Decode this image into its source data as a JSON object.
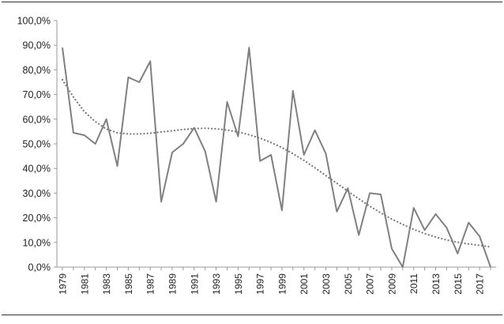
{
  "chart_data": {
    "type": "line",
    "title": "",
    "xlabel": "",
    "ylabel": "",
    "ylim": [
      0,
      100
    ],
    "y_tick_values": [
      0,
      10,
      20,
      30,
      40,
      50,
      60,
      70,
      80,
      90,
      100
    ],
    "y_tick_labels": [
      "0,0%",
      "10,0%",
      "20,0%",
      "30,0%",
      "40,0%",
      "50,0%",
      "60,0%",
      "70,0%",
      "80,0%",
      "90,0%",
      "100,0%"
    ],
    "x_tick_labels": [
      "1979",
      "1981",
      "1983",
      "1985",
      "1987",
      "1989",
      "1991",
      "1993",
      "1995",
      "1997",
      "1999",
      "2001",
      "2003",
      "2005",
      "2007",
      "2009",
      "2011",
      "2013",
      "2015",
      "2017"
    ],
    "grid": false,
    "legend": "none",
    "colors": {
      "series": "#808080",
      "trend": "#7a7a7a",
      "axis": "#999999",
      "rule": "#333333"
    },
    "series": [
      {
        "style": "solid",
        "x": [
          1979,
          1980,
          1981,
          1982,
          1983,
          1984,
          1985,
          1986,
          1987,
          1988,
          1989,
          1990,
          1991,
          1992,
          1993,
          1994,
          1995,
          1996,
          1997,
          1998,
          1999,
          2000,
          2001,
          2002,
          2003,
          2004,
          2005,
          2006,
          2007,
          2008,
          2009,
          2010,
          2011,
          2012,
          2013,
          2014,
          2015,
          2016,
          2017,
          2018
        ],
        "values": [
          89,
          54.5,
          53.5,
          50,
          60,
          41,
          77,
          75,
          83.5,
          26.5,
          46.5,
          50,
          56.5,
          47,
          26.5,
          67,
          53,
          89,
          43,
          45.5,
          23,
          71.5,
          45.5,
          55.5,
          46,
          22.5,
          32,
          13,
          30,
          29.5,
          7.5,
          0,
          24,
          15,
          21.5,
          16,
          5.5,
          18,
          12.5,
          0
        ]
      },
      {
        "style": "dotted",
        "x": [
          1979,
          1980,
          1981,
          1982,
          1983,
          1984,
          1985,
          1986,
          1987,
          1988,
          1989,
          1990,
          1991,
          1992,
          1993,
          1994,
          1995,
          1996,
          1997,
          1998,
          1999,
          2000,
          2001,
          2002,
          2003,
          2004,
          2005,
          2006,
          2007,
          2008,
          2009,
          2010,
          2011,
          2012,
          2013,
          2014,
          2015,
          2016,
          2017,
          2018
        ],
        "values": [
          76,
          69,
          63,
          59,
          56,
          54.5,
          54,
          54,
          54.3,
          54.8,
          55.3,
          55.8,
          56.2,
          56.3,
          56.1,
          55.6,
          54.8,
          53.7,
          52.3,
          50.5,
          48.5,
          46,
          43.3,
          40.3,
          37.1,
          34,
          30.8,
          27.7,
          24.7,
          22,
          19.5,
          17.3,
          15.3,
          13.6,
          12.2,
          11,
          10.1,
          9.4,
          8.8,
          8.2
        ]
      }
    ]
  }
}
